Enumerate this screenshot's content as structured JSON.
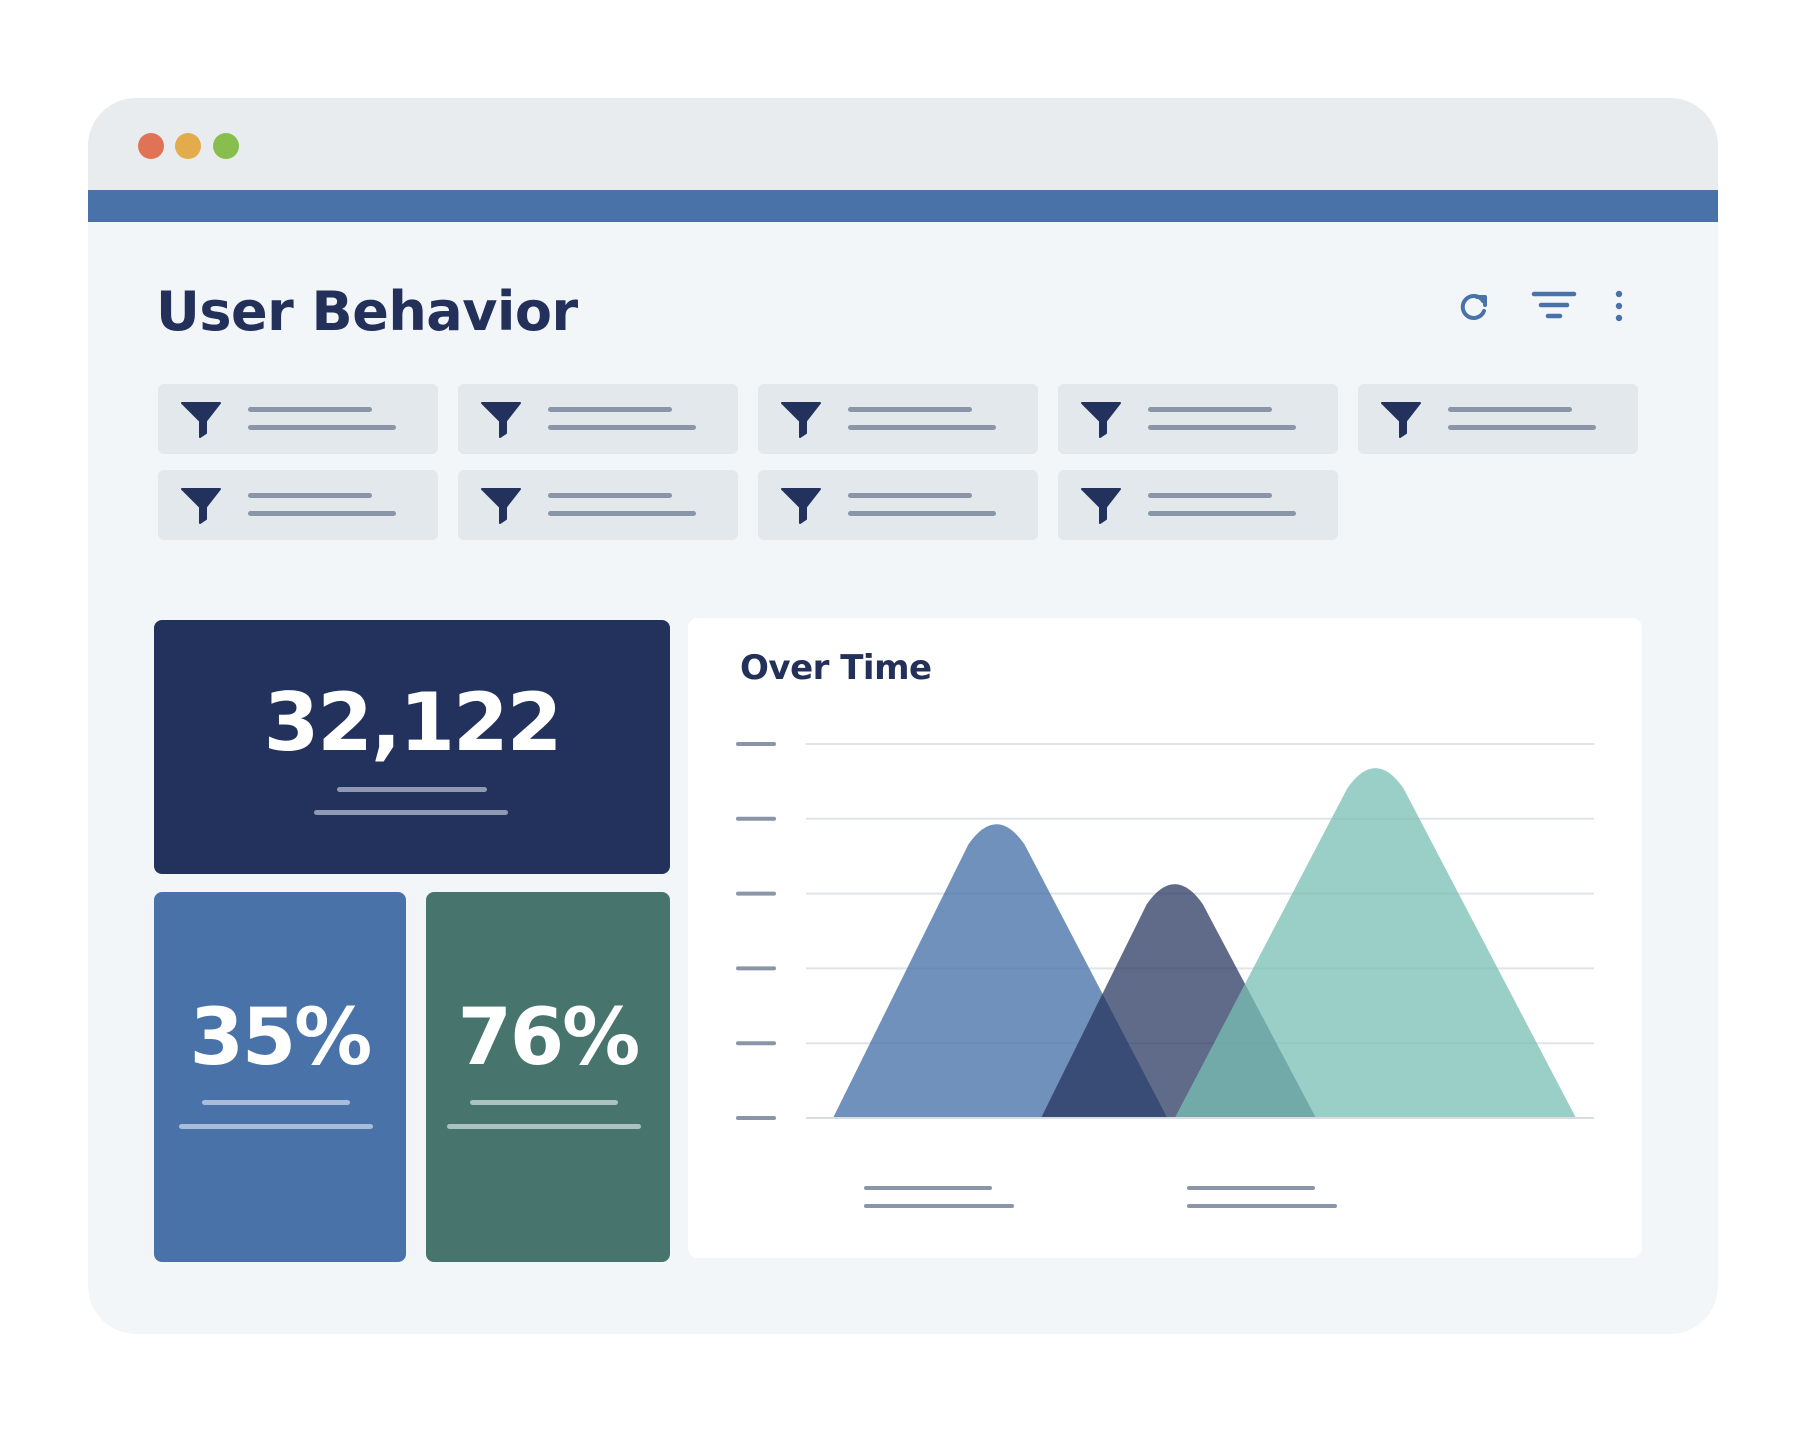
{
  "window": {
    "controls": [
      {
        "name": "close",
        "color": "#e07355"
      },
      {
        "name": "minimize",
        "color": "#e2ac4d"
      },
      {
        "name": "maximize",
        "color": "#88be4d"
      }
    ],
    "accent_color": "#4872a8"
  },
  "header": {
    "title": "User Behavior",
    "tools": [
      {
        "icon": "refresh-icon"
      },
      {
        "icon": "filter-lines-icon"
      },
      {
        "icon": "more-vertical-icon"
      }
    ]
  },
  "filters": {
    "icon": "funnel-icon",
    "count": 9
  },
  "stats": [
    {
      "value": "32,122",
      "background": "#23325c"
    },
    {
      "value": "35%",
      "background": "#4872a8"
    },
    {
      "value": "76%",
      "background": "#47756d"
    }
  ],
  "chart": {
    "title": "Over Time",
    "chart_data": {
      "type": "area",
      "title": "Over Time",
      "xlabel": "",
      "ylabel": "",
      "grid": true,
      "y_tick_count": 6,
      "x_tick_count": 2,
      "series": [
        {
          "color": "#4872a8",
          "opacity": 0.78,
          "start": 0.0,
          "peak_x": 0.22,
          "end": 0.45,
          "peak": 0.78
        },
        {
          "color": "#23325c",
          "opacity": 0.72,
          "start": 0.28,
          "peak_x": 0.46,
          "end": 0.65,
          "peak": 0.62
        },
        {
          "color": "#78bfb4",
          "opacity": 0.75,
          "start": 0.46,
          "peak_x": 0.73,
          "end": 1.0,
          "peak": 0.93
        }
      ]
    }
  }
}
